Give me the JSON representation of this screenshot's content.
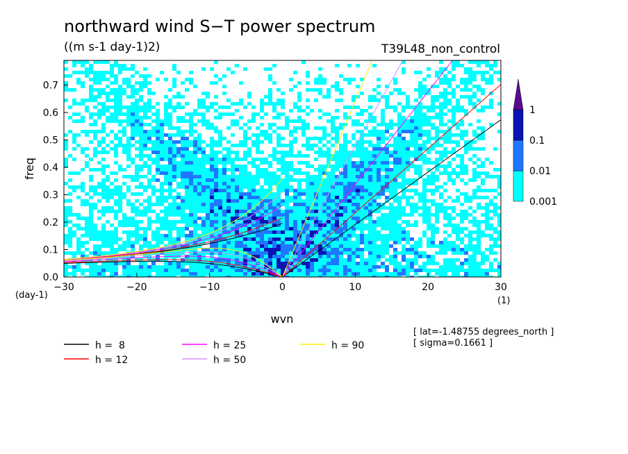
{
  "chart_data": {
    "type": "heatmap",
    "title": "northward wind S−T power spectrum",
    "subtitle": "((m s-1 day-1)2)",
    "run_label": "T39L48_non_control",
    "xlabel": "wvn",
    "ylabel": "freq",
    "x_unit": "(1)",
    "y_unit": "(day-1)",
    "xlim": [
      -30,
      30
    ],
    "ylim": [
      0,
      0.79
    ],
    "x_ticks": [
      -30,
      -20,
      -10,
      0,
      10,
      20,
      30
    ],
    "y_ticks": [
      0.0,
      0.1,
      0.2,
      0.3,
      0.4,
      0.5,
      0.6,
      0.7
    ],
    "colorbar": {
      "levels": [
        "0.001",
        "0.01",
        "0.1",
        "1"
      ],
      "colors": [
        "#ffffff",
        "#00ffff",
        "#1e78ff",
        "#0a14b4",
        "#5a0a8c"
      ]
    },
    "dispersion_curves": [
      {
        "label": "h =  8",
        "h": 8,
        "color": "#000000"
      },
      {
        "label": "h = 12",
        "h": 12,
        "color": "#ff0000"
      },
      {
        "label": "h = 25",
        "h": 25,
        "color": "#ff00ff"
      },
      {
        "label": "h = 50",
        "h": 50,
        "color": "#d68fff"
      },
      {
        "label": "h = 90",
        "h": 90,
        "color": "#ffee00"
      }
    ],
    "annotations": [
      "[ lat=-1.48755 degrees_north ]",
      "[ sigma=0.1661 ]"
    ]
  }
}
